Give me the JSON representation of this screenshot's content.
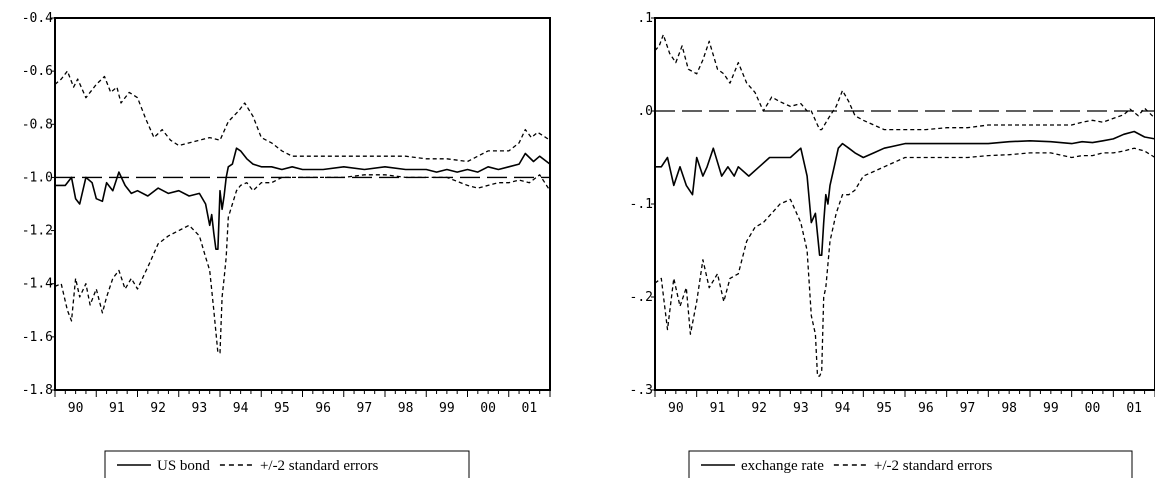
{
  "chart_data": [
    {
      "type": "line",
      "ylim": [
        -1.8,
        -0.4
      ],
      "yticks": [
        "-0.4",
        "-0.6",
        "-0.8",
        "-1.0",
        "-1.2",
        "-1.4",
        "-1.6",
        "-1.8"
      ],
      "x_ticks": [
        "90",
        "91",
        "92",
        "93",
        "94",
        "95",
        "96",
        "97",
        "98",
        "99",
        "00",
        "01"
      ],
      "x_range": [
        1990.0,
        2002.0
      ],
      "reference_line": -1.0,
      "series": [
        {
          "name": "US bond",
          "style": "solid",
          "x": [
            1990.0,
            1990.25,
            1990.4,
            1990.5,
            1990.6,
            1990.75,
            1990.9,
            1991.0,
            1991.15,
            1991.25,
            1991.4,
            1991.55,
            1991.7,
            1991.85,
            1992.0,
            1992.25,
            1992.5,
            1992.75,
            1993.0,
            1993.25,
            1993.5,
            1993.65,
            1993.75,
            1993.8,
            1993.85,
            1993.9,
            1993.95,
            1994.0,
            1994.05,
            1994.1,
            1994.15,
            1994.2,
            1994.3,
            1994.4,
            1994.5,
            1994.65,
            1994.8,
            1995.0,
            1995.25,
            1995.5,
            1995.75,
            1996.0,
            1996.5,
            1997.0,
            1997.5,
            1998.0,
            1998.5,
            1999.0,
            1999.25,
            1999.5,
            1999.75,
            2000.0,
            2000.25,
            2000.5,
            2000.75,
            2001.0,
            2001.25,
            2001.4,
            2001.6,
            2001.75,
            2002.0
          ],
          "y": [
            -1.03,
            -1.03,
            -1.0,
            -1.08,
            -1.1,
            -1.0,
            -1.02,
            -1.08,
            -1.09,
            -1.02,
            -1.05,
            -0.98,
            -1.03,
            -1.06,
            -1.05,
            -1.07,
            -1.04,
            -1.06,
            -1.05,
            -1.07,
            -1.06,
            -1.1,
            -1.18,
            -1.14,
            -1.21,
            -1.27,
            -1.27,
            -1.05,
            -1.12,
            -1.07,
            -1.0,
            -0.96,
            -0.95,
            -0.89,
            -0.9,
            -0.93,
            -0.95,
            -0.96,
            -0.96,
            -0.97,
            -0.96,
            -0.97,
            -0.97,
            -0.96,
            -0.97,
            -0.96,
            -0.97,
            -0.97,
            -0.98,
            -0.97,
            -0.98,
            -0.97,
            -0.98,
            -0.96,
            -0.97,
            -0.96,
            -0.95,
            -0.91,
            -0.94,
            -0.92,
            -0.95
          ]
        },
        {
          "name": "+/-2 standard errors",
          "style": "dashed",
          "x": [
            1990.0,
            1990.15,
            1990.3,
            1990.45,
            1990.55,
            1990.75,
            1991.0,
            1991.2,
            1991.35,
            1991.5,
            1991.6,
            1991.8,
            1992.0,
            1992.2,
            1992.4,
            1992.6,
            1992.8,
            1993.0,
            1993.25,
            1993.5,
            1993.75,
            1994.0,
            1994.2,
            1994.45,
            1994.6,
            1994.8,
            1995.0,
            1995.25,
            1995.5,
            1995.75,
            1996.0,
            1996.5,
            1997.0,
            1997.5,
            1998.0,
            1998.5,
            1999.0,
            1999.5,
            2000.0,
            2000.5,
            2001.0,
            2001.25,
            2001.4,
            2001.55,
            2001.7,
            2002.0
          ],
          "y": [
            -0.65,
            -0.63,
            -0.6,
            -0.66,
            -0.63,
            -0.7,
            -0.65,
            -0.62,
            -0.68,
            -0.66,
            -0.72,
            -0.68,
            -0.7,
            -0.78,
            -0.85,
            -0.82,
            -0.86,
            -0.88,
            -0.87,
            -0.86,
            -0.85,
            -0.86,
            -0.79,
            -0.75,
            -0.72,
            -0.77,
            -0.85,
            -0.87,
            -0.9,
            -0.92,
            -0.92,
            -0.92,
            -0.92,
            -0.92,
            -0.92,
            -0.92,
            -0.93,
            -0.93,
            -0.94,
            -0.9,
            -0.9,
            -0.87,
            -0.82,
            -0.85,
            -0.83,
            -0.86
          ]
        },
        {
          "name": "+/-2 standard errors",
          "style": "dashed",
          "x": [
            1990.0,
            1990.15,
            1990.3,
            1990.4,
            1990.5,
            1990.6,
            1990.75,
            1990.85,
            1991.0,
            1991.15,
            1991.25,
            1991.4,
            1991.55,
            1991.7,
            1991.85,
            1992.0,
            1992.15,
            1992.3,
            1992.5,
            1992.75,
            1993.0,
            1993.25,
            1993.5,
            1993.65,
            1993.75,
            1993.85,
            1993.95,
            1994.0,
            1994.05,
            1994.1,
            1994.15,
            1994.2,
            1994.3,
            1994.4,
            1994.5,
            1994.65,
            1994.8,
            1995.0,
            1995.25,
            1995.5,
            1995.75,
            1996.0,
            1996.5,
            1997.0,
            1997.5,
            1998.0,
            1998.5,
            1999.0,
            1999.5,
            2000.0,
            2000.25,
            2000.5,
            2000.75,
            2001.0,
            2001.25,
            2001.5,
            2001.75,
            2002.0
          ],
          "y": [
            -1.41,
            -1.4,
            -1.5,
            -1.54,
            -1.38,
            -1.45,
            -1.4,
            -1.48,
            -1.42,
            -1.51,
            -1.45,
            -1.38,
            -1.35,
            -1.42,
            -1.38,
            -1.42,
            -1.37,
            -1.32,
            -1.25,
            -1.22,
            -1.2,
            -1.18,
            -1.22,
            -1.3,
            -1.35,
            -1.5,
            -1.66,
            -1.66,
            -1.45,
            -1.38,
            -1.3,
            -1.15,
            -1.1,
            -1.05,
            -1.03,
            -1.02,
            -1.05,
            -1.02,
            -1.02,
            -1.0,
            -1.0,
            -1.0,
            -1.0,
            -1.0,
            -0.99,
            -0.99,
            -1.0,
            -1.0,
            -1.0,
            -1.03,
            -1.04,
            -1.03,
            -1.02,
            -1.02,
            -1.01,
            -1.02,
            -0.99,
            -1.05
          ]
        }
      ]
    },
    {
      "type": "line",
      "ylim": [
        -0.3,
        0.1
      ],
      "yticks": [
        ".1",
        ".0",
        "-.1",
        "-.2",
        "-.3"
      ],
      "x_ticks": [
        "90",
        "91",
        "92",
        "93",
        "94",
        "95",
        "96",
        "97",
        "98",
        "99",
        "00",
        "01"
      ],
      "x_range": [
        1990.0,
        2002.0
      ],
      "reference_line": 0.0,
      "series": [
        {
          "name": "exchange rate",
          "style": "solid",
          "x": [
            1990.0,
            1990.15,
            1990.3,
            1990.45,
            1990.6,
            1990.75,
            1990.9,
            1991.0,
            1991.15,
            1991.25,
            1991.4,
            1991.6,
            1991.75,
            1991.9,
            1992.0,
            1992.25,
            1992.5,
            1992.75,
            1993.0,
            1993.25,
            1993.5,
            1993.65,
            1993.75,
            1993.85,
            1993.95,
            1994.0,
            1994.05,
            1994.1,
            1994.15,
            1994.2,
            1994.3,
            1994.4,
            1994.5,
            1994.65,
            1994.8,
            1995.0,
            1995.25,
            1995.5,
            1996.0,
            1996.5,
            1997.0,
            1997.5,
            1998.0,
            1998.5,
            1999.0,
            1999.5,
            2000.0,
            2000.25,
            2000.5,
            2000.75,
            2001.0,
            2001.25,
            2001.5,
            2001.75,
            2002.0
          ],
          "y": [
            -0.06,
            -0.06,
            -0.05,
            -0.08,
            -0.06,
            -0.08,
            -0.09,
            -0.05,
            -0.07,
            -0.06,
            -0.04,
            -0.07,
            -0.06,
            -0.07,
            -0.06,
            -0.07,
            -0.06,
            -0.05,
            -0.05,
            -0.05,
            -0.04,
            -0.07,
            -0.12,
            -0.11,
            -0.155,
            -0.155,
            -0.12,
            -0.09,
            -0.1,
            -0.08,
            -0.06,
            -0.04,
            -0.035,
            -0.04,
            -0.045,
            -0.05,
            -0.045,
            -0.04,
            -0.035,
            -0.035,
            -0.035,
            -0.035,
            -0.035,
            -0.033,
            -0.032,
            -0.033,
            -0.035,
            -0.033,
            -0.034,
            -0.032,
            -0.03,
            -0.025,
            -0.022,
            -0.028,
            -0.03
          ]
        },
        {
          "name": "+/-2 standard errors",
          "style": "dashed",
          "x": [
            1990.0,
            1990.1,
            1990.2,
            1990.35,
            1990.5,
            1990.65,
            1990.8,
            1991.0,
            1991.15,
            1991.3,
            1991.5,
            1991.65,
            1991.8,
            1992.0,
            1992.2,
            1992.4,
            1992.6,
            1992.8,
            1993.0,
            1993.25,
            1993.5,
            1993.65,
            1993.75,
            1993.85,
            1993.95,
            1994.0,
            1994.2,
            1994.35,
            1994.5,
            1994.65,
            1994.8,
            1995.0,
            1995.25,
            1995.5,
            1996.0,
            1996.5,
            1997.0,
            1997.5,
            1998.0,
            1998.5,
            1999.0,
            1999.5,
            2000.0,
            2000.25,
            2000.5,
            2000.75,
            2001.0,
            2001.25,
            2001.4,
            2001.6,
            2001.75,
            2002.0
          ],
          "y": [
            0.065,
            0.07,
            0.082,
            0.062,
            0.052,
            0.07,
            0.045,
            0.04,
            0.055,
            0.075,
            0.045,
            0.04,
            0.03,
            0.052,
            0.03,
            0.02,
            0.0,
            0.015,
            0.01,
            0.005,
            0.008,
            0.0,
            0.0,
            -0.01,
            -0.02,
            -0.02,
            -0.005,
            0.005,
            0.022,
            0.01,
            -0.005,
            -0.01,
            -0.015,
            -0.02,
            -0.02,
            -0.02,
            -0.018,
            -0.018,
            -0.015,
            -0.015,
            -0.015,
            -0.015,
            -0.015,
            -0.012,
            -0.01,
            -0.012,
            -0.008,
            -0.004,
            0.002,
            -0.005,
            0.003,
            -0.008
          ]
        },
        {
          "name": "+/-2 standard errors",
          "style": "dashed",
          "x": [
            1990.0,
            1990.15,
            1990.3,
            1990.45,
            1990.6,
            1990.75,
            1990.85,
            1991.0,
            1991.15,
            1991.3,
            1991.5,
            1991.65,
            1991.8,
            1992.0,
            1992.2,
            1992.4,
            1992.6,
            1992.8,
            1993.0,
            1993.25,
            1993.5,
            1993.65,
            1993.75,
            1993.85,
            1993.9,
            1993.95,
            1994.0,
            1994.05,
            1994.1,
            1994.2,
            1994.35,
            1994.5,
            1994.65,
            1994.8,
            1995.0,
            1995.25,
            1995.5,
            1996.0,
            1996.5,
            1997.0,
            1997.5,
            1998.0,
            1998.5,
            1999.0,
            1999.5,
            2000.0,
            2000.25,
            2000.5,
            2000.75,
            2001.0,
            2001.25,
            2001.5,
            2001.75,
            2002.0
          ],
          "y": [
            -0.185,
            -0.18,
            -0.235,
            -0.18,
            -0.21,
            -0.19,
            -0.24,
            -0.205,
            -0.16,
            -0.19,
            -0.175,
            -0.205,
            -0.18,
            -0.175,
            -0.14,
            -0.125,
            -0.12,
            -0.11,
            -0.1,
            -0.095,
            -0.12,
            -0.15,
            -0.22,
            -0.24,
            -0.285,
            -0.285,
            -0.28,
            -0.2,
            -0.19,
            -0.14,
            -0.11,
            -0.09,
            -0.09,
            -0.085,
            -0.07,
            -0.065,
            -0.06,
            -0.05,
            -0.05,
            -0.05,
            -0.05,
            -0.048,
            -0.047,
            -0.045,
            -0.045,
            -0.05,
            -0.048,
            -0.048,
            -0.045,
            -0.045,
            -0.043,
            -0.04,
            -0.043,
            -0.05
          ]
        }
      ]
    }
  ],
  "legends": [
    {
      "solid_label": "US bond",
      "dashed_label": "+/-2 standard errors"
    },
    {
      "solid_label": "exchange rate",
      "dashed_label": "+/-2 standard errors"
    }
  ]
}
